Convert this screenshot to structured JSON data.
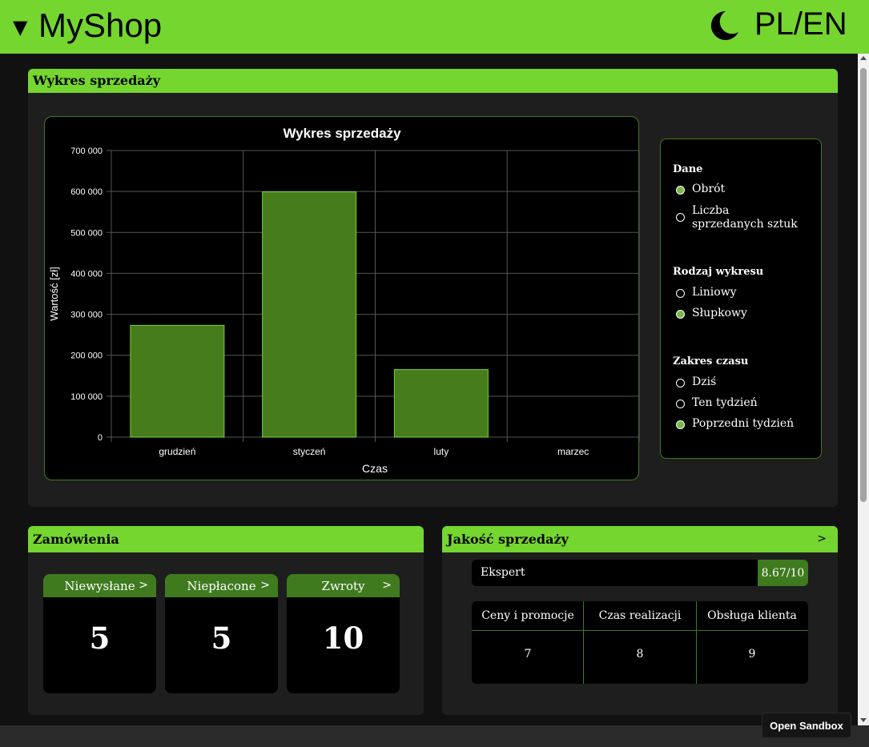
{
  "header": {
    "menu_arrow": "▼",
    "title": "MyShop",
    "theme_icon": "moon-icon",
    "language": "PL/EN",
    "accent": "#75d630"
  },
  "sales_panel": {
    "title": "Wykres sprzedaży",
    "options": {
      "data_heading": "Dane",
      "data_options": [
        {
          "label": "Obrót",
          "selected": true
        },
        {
          "label": "Liczba sprzedanych sztuk",
          "selected": false
        }
      ],
      "chart_type_heading": "Rodzaj wykresu",
      "chart_type_options": [
        {
          "label": "Liniowy",
          "selected": false
        },
        {
          "label": "Słupkowy",
          "selected": true
        }
      ],
      "range_heading": "Zakres czasu",
      "range_options": [
        {
          "label": "Dziś",
          "selected": false
        },
        {
          "label": "Ten tydzień",
          "selected": false
        },
        {
          "label": "Poprzedni tydzień",
          "selected": true
        }
      ]
    }
  },
  "chart_data": {
    "type": "bar",
    "title": "Wykres sprzedaży",
    "xlabel": "Czas",
    "ylabel": "Wartość [zł]",
    "categories": [
      "grudzień",
      "styczeń",
      "luty",
      "marzec"
    ],
    "values": [
      273000,
      599000,
      165000,
      0
    ],
    "ylim": [
      0,
      700000
    ],
    "yticks": [
      0,
      100000,
      200000,
      300000,
      400000,
      500000,
      600000,
      700000
    ],
    "ytick_labels": [
      "0",
      "100 000",
      "200 000",
      "300 000",
      "400 000",
      "500 000",
      "600 000",
      "700 000"
    ],
    "grid": true,
    "bar_color": "#467c1c",
    "bar_edge": "#75d630"
  },
  "orders": {
    "title": "Zamówienia",
    "cards": [
      {
        "label": "Niewysłane",
        "value": "5"
      },
      {
        "label": "Niepłacone",
        "value": "5"
      },
      {
        "label": "Zwroty",
        "value": "10"
      }
    ]
  },
  "quality": {
    "title": "Jakość sprzedaży",
    "expert_label": "Ekspert",
    "expert_score": "8.67/10",
    "columns": [
      {
        "label": "Ceny i promocje",
        "value": "7"
      },
      {
        "label": "Czas realizacji",
        "value": "8"
      },
      {
        "label": "Obsługa klienta",
        "value": "9"
      }
    ]
  },
  "sandbox_button": "Open Sandbox"
}
